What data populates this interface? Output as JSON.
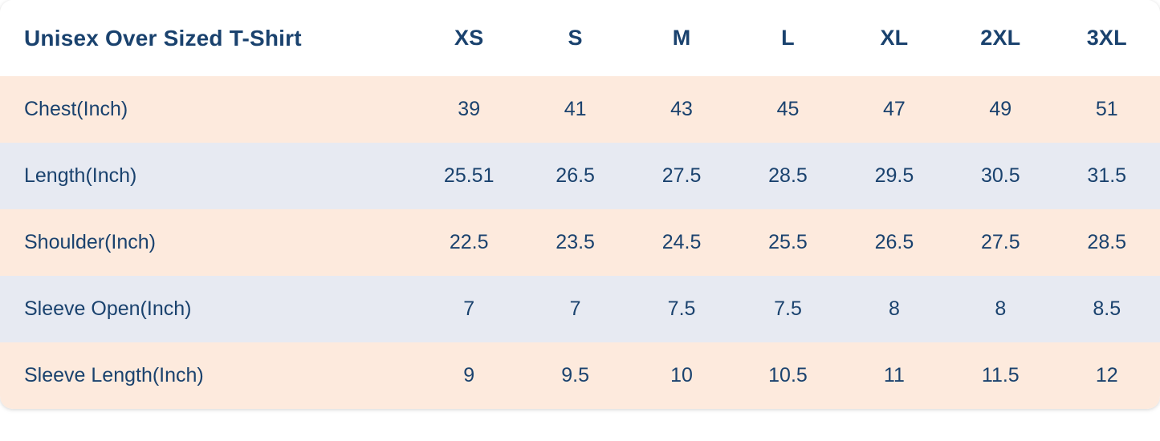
{
  "chart_data": {
    "type": "table",
    "title": "Unisex Over Sized T-Shirt",
    "unit": "Inch",
    "columns": [
      "XS",
      "S",
      "M",
      "L",
      "XL",
      "2XL",
      "3XL"
    ],
    "rows": [
      {
        "label": "Chest(Inch)",
        "values": [
          "39",
          "41",
          "43",
          "45",
          "47",
          "49",
          "51"
        ]
      },
      {
        "label": "Length(Inch)",
        "values": [
          "25.51",
          "26.5",
          "27.5",
          "28.5",
          "29.5",
          "30.5",
          "31.5"
        ]
      },
      {
        "label": "Shoulder(Inch)",
        "values": [
          "22.5",
          "23.5",
          "24.5",
          "25.5",
          "26.5",
          "27.5",
          "28.5"
        ]
      },
      {
        "label": "Sleeve Open(Inch)",
        "values": [
          "7",
          "7",
          "7.5",
          "7.5",
          "8",
          "8",
          "8.5"
        ]
      },
      {
        "label": "Sleeve Length(Inch)",
        "values": [
          "9",
          "9.5",
          "10",
          "10.5",
          "11",
          "11.5",
          "12"
        ]
      }
    ],
    "layout": {
      "legend": "none",
      "grid": "off",
      "row_striping": "alternating"
    },
    "colors": {
      "text_navy": "#1a426e",
      "row_peach": "#fdeadd",
      "row_blue_gray": "#e7eaf2",
      "header_background": "#ffffff"
    }
  }
}
